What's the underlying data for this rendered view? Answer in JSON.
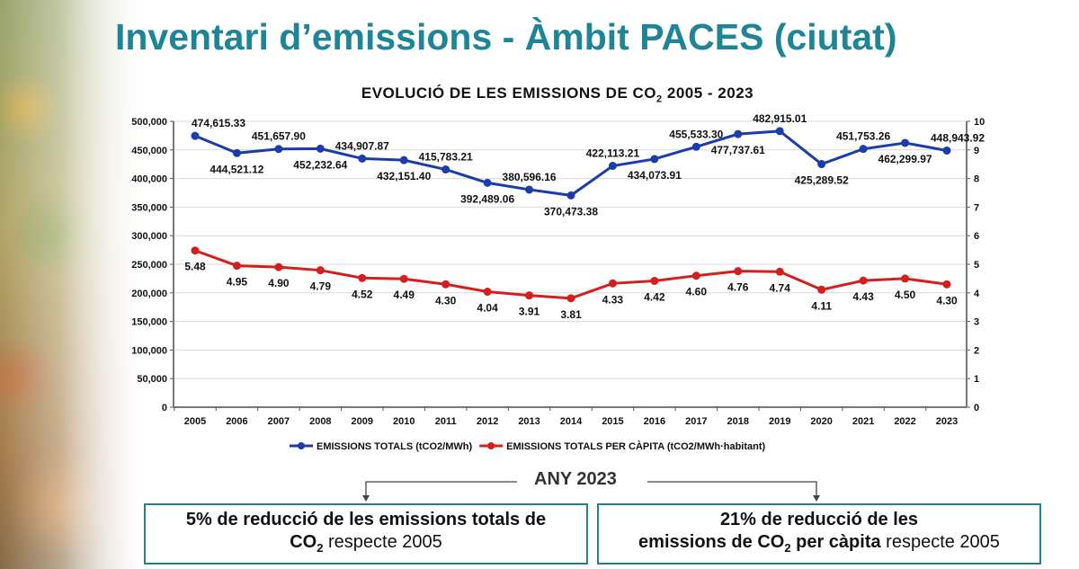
{
  "slide_title": "Inventari d’emissions - Àmbit PACES (ciutat)",
  "chart_data": {
    "type": "line",
    "title": "EVOLUCIÓ DE LES EMISSIONS DE CO",
    "title_sub": "2",
    "title_suffix": " 2005 - 2023",
    "categories": [
      "2005",
      "2006",
      "2007",
      "2008",
      "2009",
      "2010",
      "2011",
      "2012",
      "2013",
      "2014",
      "2015",
      "2016",
      "2017",
      "2018",
      "2019",
      "2020",
      "2021",
      "2022",
      "2023"
    ],
    "series": [
      {
        "name": "EMISSIONS TOTALS (tCO2/MWh)",
        "axis": "left",
        "color": "#1a3cad",
        "values": [
          474615.33,
          444521.12,
          451657.9,
          452232.64,
          434907.87,
          432151.4,
          415783.21,
          392489.06,
          380596.16,
          370473.38,
          422113.21,
          434073.91,
          455533.3,
          477737.61,
          482915.01,
          425289.52,
          451753.26,
          462299.97,
          448943.92
        ],
        "labels": [
          "474,615.33",
          "444,521.12",
          "451,657.90",
          "452,232.64",
          "434,907.87",
          "432,151.40",
          "415,783.21",
          "392,489.06",
          "380,596.16",
          "370,473.38",
          "422,113.21",
          "434,073.91",
          "455,533.30",
          "477,737.61",
          "482,915.01",
          "425,289.52",
          "451,753.26",
          "462,299.97",
          "448,943.92"
        ]
      },
      {
        "name": "EMISSIONS TOTALS PER CÀPITA (tCO2/MWh·habitant)",
        "axis": "right",
        "color": "#d41f1f",
        "values": [
          5.48,
          4.95,
          4.9,
          4.79,
          4.52,
          4.49,
          4.3,
          4.04,
          3.91,
          3.81,
          4.33,
          4.42,
          4.6,
          4.76,
          4.74,
          4.11,
          4.43,
          4.5,
          4.3
        ],
        "labels": [
          "5.48",
          "4.95",
          "4.90",
          "4.79",
          "4.52",
          "4.49",
          "4.30",
          "4.04",
          "3.91",
          "3.81",
          "4.33",
          "4.42",
          "4.60",
          "4.76",
          "4.74",
          "4.11",
          "4.43",
          "4.50",
          "4.30"
        ]
      }
    ],
    "y_left": {
      "range": [
        0,
        500000
      ],
      "ticks": [
        "0",
        "50,000",
        "100,000",
        "150,000",
        "200,000",
        "250,000",
        "300,000",
        "350,000",
        "400,000",
        "450,000",
        "500,000"
      ]
    },
    "y_right": {
      "range": [
        0,
        10
      ],
      "ticks": [
        "0",
        "1",
        "2",
        "3",
        "4",
        "5",
        "6",
        "7",
        "8",
        "9",
        "10"
      ]
    },
    "grid": true,
    "legend": "bottom"
  },
  "summary": {
    "heading": "ANY 2023",
    "box1": {
      "line1": "5% de reducció de les emissions totals de",
      "co": "CO",
      "sub": "2",
      "rest": " respecte 2005"
    },
    "box2": {
      "line1": "21% de reducció de les",
      "bold2": "emissions de CO",
      "sub": "2",
      "bold3": " per càpita",
      "rest": " respecte 2005"
    }
  }
}
